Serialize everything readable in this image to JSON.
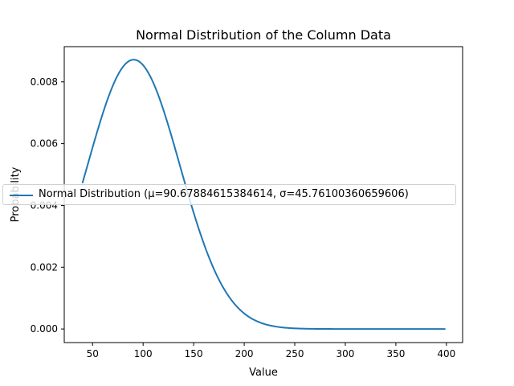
{
  "chart_data": {
    "type": "line",
    "title": "Normal Distribution of the Column Data",
    "xlabel": "Value",
    "ylabel": "Probability",
    "xlim": [
      22,
      416
    ],
    "ylim": [
      -0.00044,
      0.00914
    ],
    "xticks": [
      50,
      100,
      150,
      200,
      250,
      300,
      350,
      400
    ],
    "xtick_labels": [
      "50",
      "100",
      "150",
      "200",
      "250",
      "300",
      "350",
      "400"
    ],
    "yticks": [
      0.0,
      0.002,
      0.004,
      0.006,
      0.008
    ],
    "ytick_labels": [
      "0.000",
      "0.002",
      "0.004",
      "0.006",
      "0.008"
    ],
    "grid": false,
    "legend_position": "center-left",
    "series": [
      {
        "name": "Normal Distribution (μ=90.67884615384614, σ=45.76100360659606)",
        "color": "#1f77b4",
        "x_range": [
          40,
          399
        ],
        "x": [
          40,
          50,
          60,
          70,
          80,
          90.68,
          100,
          110,
          120,
          130,
          140,
          150,
          160,
          170,
          180,
          190,
          200,
          210,
          220,
          230,
          240,
          250,
          275,
          300,
          350,
          399
        ],
        "y": [
          0.00471,
          0.0059,
          0.00702,
          0.00802,
          0.00866,
          0.00872,
          0.00853,
          0.00803,
          0.00711,
          0.00601,
          0.00484,
          0.00372,
          0.00277,
          0.00196,
          0.00133,
          0.00087,
          0.00053,
          0.00031,
          0.00017,
          8e-05,
          4e-05,
          2e-05,
          0.0,
          0.0,
          0.0,
          0.0
        ],
        "mu": 90.67884615384614,
        "sigma": 45.76100360659606
      }
    ]
  }
}
